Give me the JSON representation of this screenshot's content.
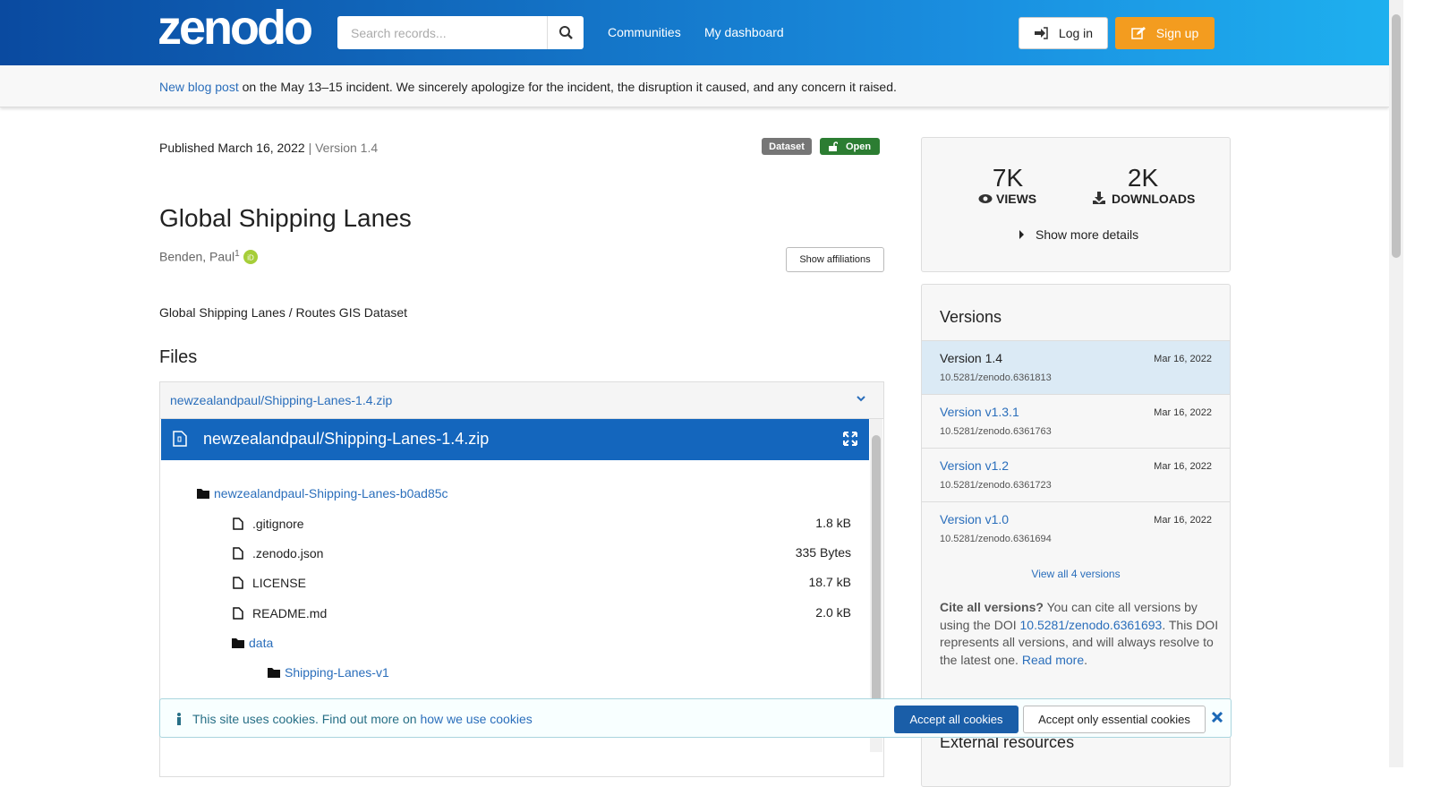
{
  "header": {
    "logo": "zenodo",
    "search_placeholder": "Search records...",
    "nav": [
      "Communities",
      "My dashboard"
    ],
    "login": "Log in",
    "signup": "Sign up"
  },
  "banner": {
    "link": "New blog post",
    "text": " on the May 13–15 incident. We sincerely apologize for the incident, the disruption it caused, and any concern it raised."
  },
  "record": {
    "published": "Published March 16, 2022",
    "version": "| Version 1.4",
    "badges": [
      "Dataset",
      "Open"
    ],
    "title": "Global Shipping Lanes",
    "author": "Benden, Paul",
    "affiliation_sup": "1",
    "show_affiliations": "Show affiliations",
    "description": "Global Shipping Lanes / Routes GIS Dataset"
  },
  "files": {
    "heading": "Files",
    "archive": "newzealandpaul/Shipping-Lanes-1.4.zip",
    "preview_title": "newzealandpaul/Shipping-Lanes-1.4.zip",
    "tree": [
      {
        "name": "newzealandpaul-Shipping-Lanes-b0ad85c"
      },
      {
        "name": ".gitignore",
        "size": "1.8 kB"
      },
      {
        "name": ".zenodo.json",
        "size": "335 Bytes"
      },
      {
        "name": "LICENSE",
        "size": "18.7 kB"
      },
      {
        "name": "README.md",
        "size": "2.0 kB"
      },
      {
        "name": "data"
      },
      {
        "name": "Shipping-Lanes-v1"
      }
    ]
  },
  "stats": {
    "views": "7K",
    "views_label": "VIEWS",
    "downloads": "2K",
    "downloads_label": "DOWNLOADS",
    "more": "Show more details"
  },
  "versions": {
    "heading": "Versions",
    "items": [
      {
        "name": "Version 1.4",
        "date": "Mar 16, 2022",
        "doi": "10.5281/zenodo.6361813"
      },
      {
        "name": "Version v1.3.1",
        "date": "Mar 16, 2022",
        "doi": "10.5281/zenodo.6361763"
      },
      {
        "name": "Version v1.2",
        "date": "Mar 16, 2022",
        "doi": "10.5281/zenodo.6361723"
      },
      {
        "name": "Version v1.0",
        "date": "Mar 16, 2022",
        "doi": "10.5281/zenodo.6361694"
      }
    ],
    "view_all": "View all 4 versions",
    "cite": {
      "bold": "Cite all versions?",
      "text1": " You can cite all versions by using the DOI ",
      "doi": "10.5281/zenodo.6361693",
      "text2": ". This DOI represents all versions, and will always resolve to the latest one. ",
      "read_more": "Read more",
      "end": "."
    },
    "external_heading": "External resources"
  },
  "cookies": {
    "text": "This site uses cookies. Find out more on ",
    "link": "how we use cookies",
    "accept_all": "Accept all cookies",
    "accept_essential": "Accept only essential cookies"
  }
}
